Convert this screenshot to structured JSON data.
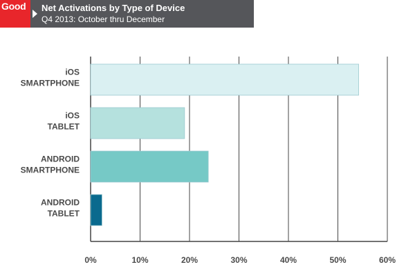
{
  "header": {
    "logo_text": "Good",
    "title": "Net Activations by Type of Device",
    "subtitle": "Q4 2013: October thru December"
  },
  "chart_data": {
    "type": "bar",
    "orientation": "horizontal",
    "categories": [
      [
        "iOS",
        "SMARTPHONE"
      ],
      [
        "iOS",
        "TABLET"
      ],
      [
        "ANDROID",
        "SMARTPHONE"
      ],
      [
        "ANDROID",
        "TABLET"
      ]
    ],
    "values": [
      54.2,
      19,
      23.8,
      2.3
    ],
    "colors": [
      "#daf0f2",
      "#b5e1de",
      "#76c9c6",
      "#0a6a8e"
    ],
    "xlim": [
      0,
      60
    ],
    "xticks": [
      0,
      10,
      20,
      30,
      40,
      50,
      60
    ],
    "tick_suffix": "%",
    "grid": true
  }
}
